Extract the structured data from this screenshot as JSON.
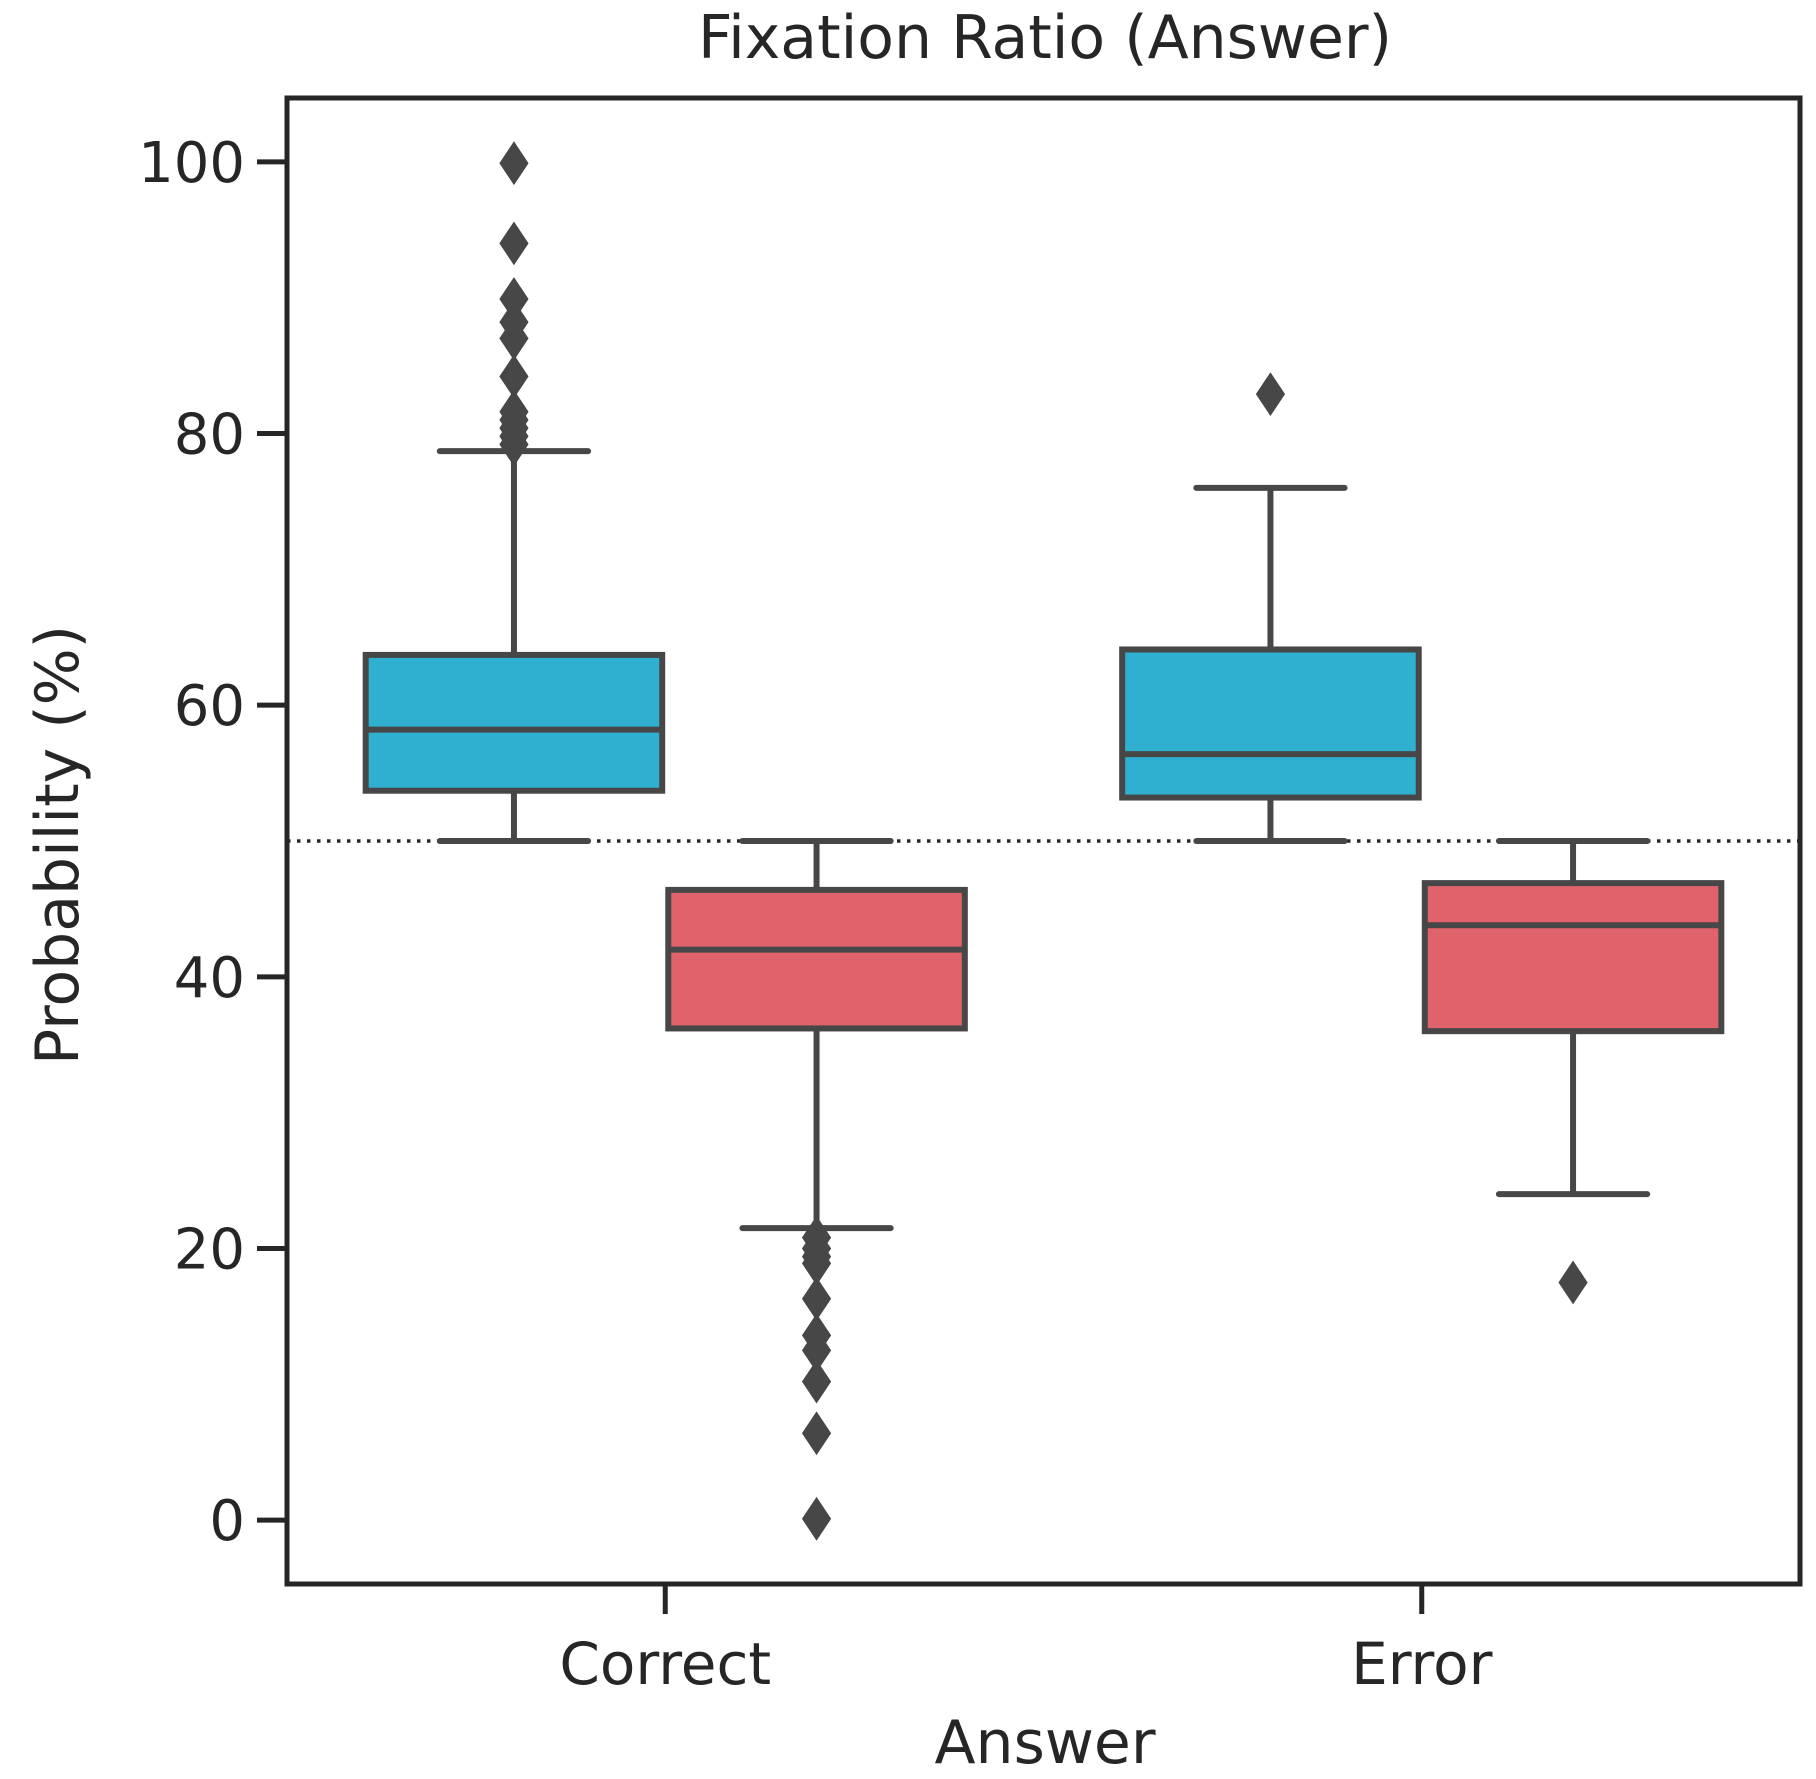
{
  "chart_data": {
    "type": "box",
    "title": "Fixation Ratio (Answer)",
    "xlabel": "Answer",
    "ylabel": "Probability (%)",
    "categories": [
      "Correct",
      "Error"
    ],
    "ylim": [
      -4.7,
      104.7
    ],
    "yticks": [
      0,
      20,
      40,
      60,
      80,
      100
    ],
    "grid": false,
    "reference_line": {
      "y": 50,
      "style": "dotted",
      "color": "#262626"
    },
    "series": [
      {
        "color": "#2fb0d0",
        "boxes": [
          {
            "category": "Correct",
            "whisker_low": 50.0,
            "q1": 53.7,
            "median": 58.2,
            "q3": 63.7,
            "whisker_high": 78.7,
            "outliers": [
              79.2,
              79.8,
              80.4,
              81.0,
              81.6,
              84.2,
              87.0,
              88.2,
              89.9,
              94.0,
              99.9
            ]
          },
          {
            "category": "Error",
            "whisker_low": 50.0,
            "q1": 53.2,
            "median": 56.4,
            "q3": 64.1,
            "whisker_high": 76.0,
            "outliers": [
              82.9
            ]
          }
        ]
      },
      {
        "color": "#e0636b",
        "boxes": [
          {
            "category": "Correct",
            "whisker_low": 21.5,
            "q1": 36.2,
            "median": 42.0,
            "q3": 46.4,
            "whisker_high": 50.0,
            "outliers": [
              20.8,
              20.0,
              19.4,
              18.9,
              16.3,
              13.6,
              12.5,
              10.2,
              6.4,
              0.1
            ]
          },
          {
            "category": "Error",
            "whisker_low": 24.0,
            "q1": 36.0,
            "median": 43.8,
            "q3": 46.9,
            "whisker_high": 50.0,
            "outliers": [
              17.5
            ]
          }
        ]
      }
    ]
  }
}
